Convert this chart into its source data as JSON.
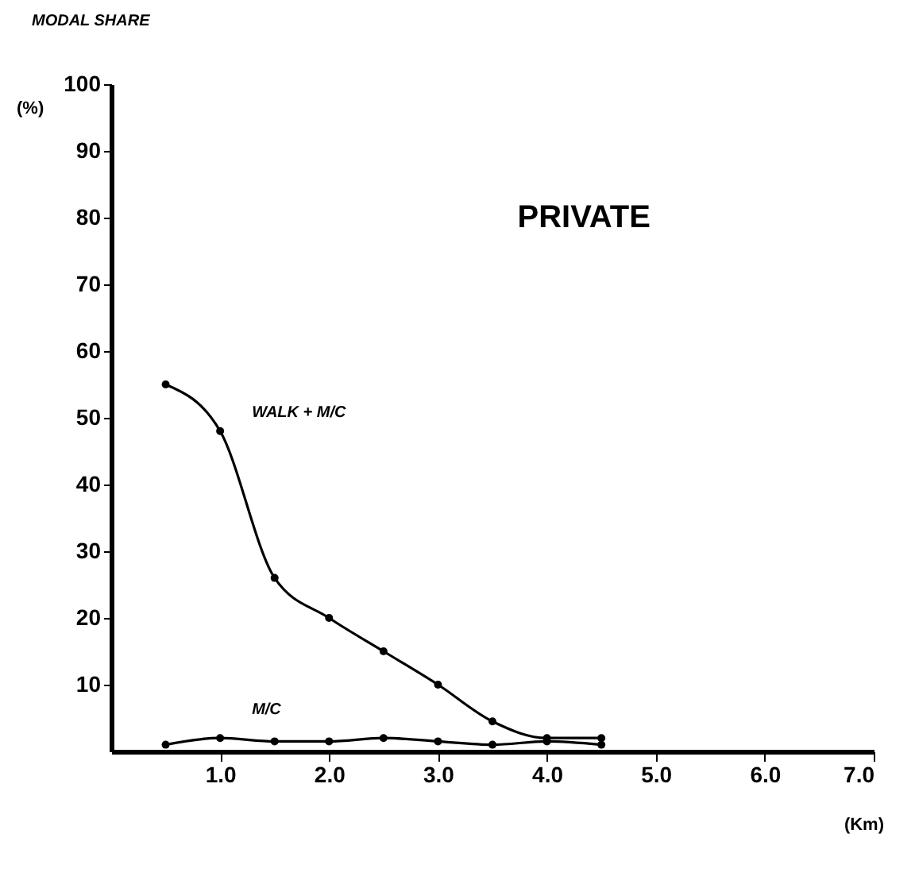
{
  "chart_data": {
    "type": "line",
    "title": "MODAL SHARE",
    "ylabel": "(%)",
    "xlabel": "(Km)",
    "annotations": [
      "PRIVATE"
    ],
    "xlim": [
      0,
      7
    ],
    "xticks": [
      {
        "value": 1,
        "label": "1.0"
      },
      {
        "value": 2,
        "label": "2.0"
      },
      {
        "value": 3,
        "label": "3.0"
      },
      {
        "value": 4,
        "label": "4.0"
      },
      {
        "value": 5,
        "label": "5.0"
      },
      {
        "value": 6,
        "label": "6.0"
      },
      {
        "value": 7,
        "label": "7.0"
      }
    ],
    "ylim": [
      0,
      100
    ],
    "yticks": [
      10,
      20,
      30,
      40,
      50,
      60,
      70,
      80,
      90,
      100
    ],
    "marker": "circle",
    "line_style": "solid",
    "series": [
      {
        "name": "WALK + M/C",
        "color": "#000000",
        "x": [
          0.5,
          1.0,
          1.5,
          2.0,
          2.5,
          3.0,
          3.5,
          4.0,
          4.5
        ],
        "values": [
          55,
          48,
          26,
          20,
          15,
          10,
          4.5,
          2,
          2
        ]
      },
      {
        "name": "M/C",
        "color": "#000000",
        "x": [
          0.5,
          1.0,
          1.5,
          2.0,
          2.5,
          3.0,
          3.5,
          4.0,
          4.5
        ],
        "values": [
          1,
          2,
          1.5,
          1.5,
          2,
          1.5,
          1,
          1.5,
          1
        ]
      }
    ]
  }
}
